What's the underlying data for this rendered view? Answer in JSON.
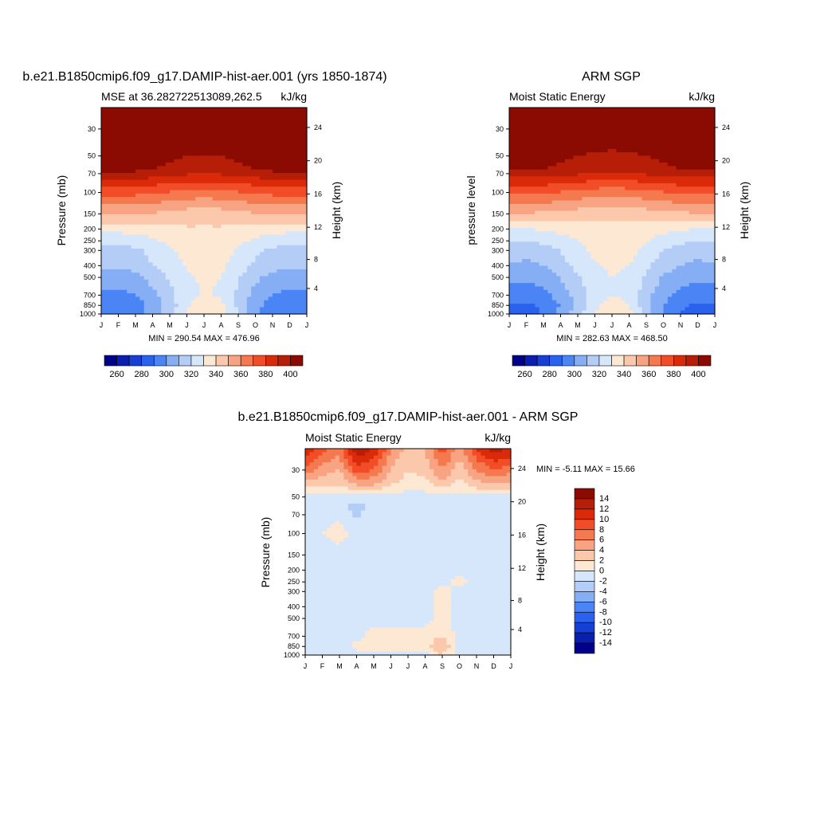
{
  "panels": [
    {
      "title": "b.e21.B1850cmip6.f09_g17.DAMIP-hist-aer.001 (yrs 1850-1874)",
      "subtitle_left": "MSE at 36.282722513089,262.5",
      "units": "kJ/kg",
      "left_axis_label": "Pressure (mb)",
      "right_axis_label": "Height (km)",
      "stats": "MIN = 290.54  MAX = 476.96"
    },
    {
      "title": "ARM SGP",
      "subtitle_left": "Moist Static Energy",
      "units": "kJ/kg",
      "left_axis_label": "pressure level",
      "right_axis_label": "Height (km)",
      "stats": "MIN = 282.63  MAX = 468.50"
    },
    {
      "title": "b.e21.B1850cmip6.f09_g17.DAMIP-hist-aer.001 - ARM SGP",
      "subtitle_left": "Moist Static Energy",
      "units": "kJ/kg",
      "left_axis_label": "Pressure (mb)",
      "right_axis_label": "Height (km)",
      "stats": "MIN =  -5.11  MAX =  15.66"
    }
  ],
  "abs_colorbar": {
    "colors": [
      "#00008a",
      "#0a1fb0",
      "#1640d4",
      "#2a62f0",
      "#4b85f5",
      "#86aef5",
      "#b4cdf7",
      "#d6e6fb",
      "#fde8d4",
      "#fbc8ac",
      "#f8a482",
      "#f5794f",
      "#f24d27",
      "#db2a0a",
      "#b61e08",
      "#8b0a02"
    ],
    "labels": [
      "260",
      "280",
      "300",
      "320",
      "340",
      "360",
      "380",
      "400"
    ]
  },
  "diff_colorbar": {
    "colors": [
      "#00008a",
      "#0a1fb0",
      "#1640d4",
      "#2a62f0",
      "#4b85f5",
      "#86aef5",
      "#b4cdf7",
      "#d6e6fb",
      "#fde8d4",
      "#fbc8ac",
      "#f8a482",
      "#f5794f",
      "#f24d27",
      "#db2a0a",
      "#b61e08",
      "#8b0a02"
    ],
    "labels": [
      "-14",
      "-12",
      "-10",
      "-8",
      "-6",
      "-4",
      "-2",
      "0",
      "2",
      "4",
      "6",
      "8",
      "10",
      "12",
      "14"
    ]
  },
  "chart_data": [
    {
      "type": "heatmap",
      "title": "b.e21.B1850cmip6.f09_g17.DAMIP-hist-aer.001 (yrs 1850-1874)",
      "subtitle": "MSE at 36.282722513089,262.5",
      "units": "kJ/kg",
      "xlabel": "",
      "ylabel": "Pressure (mb)",
      "y2label": "Height (km)",
      "x_tick_labels": [
        "J",
        "F",
        "M",
        "A",
        "M",
        "J",
        "J",
        "A",
        "S",
        "O",
        "N",
        "D",
        "J"
      ],
      "y_ticks": [
        30,
        50,
        70,
        100,
        150,
        200,
        250,
        300,
        400,
        500,
        700,
        850,
        1000
      ],
      "y2_ticks": [
        4,
        8,
        12,
        16,
        20,
        24
      ],
      "y_scale": "log",
      "ylim": [
        1000,
        20
      ],
      "min": 290.54,
      "max": 476.96,
      "levels": [
        {
          "p": 20,
          "values": [
            415,
            415,
            415,
            415,
            415,
            415,
            415,
            415,
            415,
            415,
            415,
            415,
            415
          ]
        },
        {
          "p": 65,
          "values": [
            402,
            402,
            402,
            400,
            398,
            396,
            395,
            396,
            398,
            400,
            402,
            402,
            402
          ]
        },
        {
          "p": 100,
          "values": [
            374,
            374,
            373,
            371,
            369,
            367,
            366,
            367,
            369,
            371,
            373,
            374,
            374
          ]
        },
        {
          "p": 150,
          "values": [
            351,
            351,
            350,
            349,
            347,
            345,
            344,
            345,
            347,
            349,
            350,
            351,
            351
          ]
        },
        {
          "p": 200,
          "values": [
            333,
            333,
            334,
            335,
            337,
            339,
            339,
            339,
            337,
            335,
            334,
            333,
            333
          ]
        },
        {
          "p": 300,
          "values": [
            317,
            316,
            318,
            323,
            328,
            335,
            337,
            336,
            329,
            322,
            318,
            316,
            317
          ]
        },
        {
          "p": 400,
          "values": [
            312,
            311,
            313,
            320,
            325,
            331,
            334,
            332,
            325,
            318,
            313,
            311,
            312
          ]
        },
        {
          "p": 500,
          "values": [
            306,
            305,
            307,
            314,
            321,
            329,
            331,
            330,
            321,
            312,
            307,
            305,
            306
          ]
        },
        {
          "p": 700,
          "values": [
            298,
            297,
            300,
            307,
            317,
            327,
            331,
            329,
            318,
            306,
            300,
            297,
            298
          ]
        },
        {
          "p": 850,
          "values": [
            292,
            291,
            295,
            304,
            315,
            328,
            336,
            333,
            318,
            303,
            295,
            291,
            292
          ]
        },
        {
          "p": 1000,
          "values": [
            291,
            290,
            295,
            305,
            318,
            332,
            340,
            336,
            319,
            303,
            294,
            290,
            291
          ]
        }
      ]
    },
    {
      "type": "heatmap",
      "title": "ARM SGP",
      "subtitle": "Moist Static Energy",
      "units": "kJ/kg",
      "xlabel": "",
      "ylabel": "pressure level",
      "y2label": "Height (km)",
      "x_tick_labels": [
        "J",
        "F",
        "M",
        "A",
        "M",
        "J",
        "J",
        "A",
        "S",
        "O",
        "N",
        "D",
        "J"
      ],
      "y_ticks": [
        30,
        50,
        70,
        100,
        150,
        200,
        250,
        300,
        400,
        500,
        700,
        850,
        1000
      ],
      "y2_ticks": [
        4,
        8,
        12,
        16,
        20,
        24
      ],
      "y_scale": "log",
      "ylim": [
        1000,
        20
      ],
      "min": 282.63,
      "max": 468.5,
      "levels": [
        {
          "p": 20,
          "values": [
            415,
            415,
            415,
            415,
            415,
            415,
            415,
            415,
            415,
            415,
            415,
            415,
            415
          ]
        },
        {
          "p": 65,
          "values": [
            400,
            400,
            400,
            398,
            396,
            394,
            393,
            394,
            396,
            398,
            400,
            400,
            400
          ]
        },
        {
          "p": 100,
          "values": [
            372,
            372,
            371,
            369,
            367,
            365,
            364,
            365,
            367,
            369,
            371,
            372,
            372
          ]
        },
        {
          "p": 150,
          "values": [
            349,
            349,
            348,
            347,
            345,
            343,
            342,
            343,
            345,
            347,
            348,
            349,
            349
          ]
        },
        {
          "p": 200,
          "values": [
            330,
            330,
            331,
            333,
            335,
            337,
            338,
            337,
            335,
            333,
            331,
            330,
            330
          ]
        },
        {
          "p": 300,
          "values": [
            314,
            313,
            315,
            320,
            326,
            333,
            336,
            334,
            327,
            320,
            315,
            313,
            314
          ]
        },
        {
          "p": 400,
          "values": [
            309,
            308,
            310,
            317,
            323,
            329,
            332,
            330,
            322,
            315,
            310,
            308,
            309
          ]
        },
        {
          "p": 500,
          "values": [
            303,
            302,
            304,
            311,
            319,
            327,
            330,
            328,
            318,
            309,
            304,
            302,
            303
          ]
        },
        {
          "p": 700,
          "values": [
            295,
            294,
            297,
            304,
            314,
            325,
            330,
            327,
            314,
            303,
            297,
            294,
            295
          ]
        },
        {
          "p": 850,
          "values": [
            289,
            288,
            292,
            301,
            313,
            327,
            336,
            330,
            314,
            300,
            292,
            288,
            289
          ]
        },
        {
          "p": 1000,
          "values": [
            287,
            286,
            291,
            302,
            316,
            331,
            340,
            333,
            315,
            299,
            290,
            286,
            287
          ]
        }
      ]
    },
    {
      "type": "heatmap",
      "title": "b.e21.B1850cmip6.f09_g17.DAMIP-hist-aer.001 - ARM SGP",
      "subtitle": "Moist Static Energy",
      "units": "kJ/kg",
      "xlabel": "",
      "ylabel": "Pressure (mb)",
      "y2label": "Height (km)",
      "x_tick_labels": [
        "J",
        "F",
        "M",
        "A",
        "M",
        "J",
        "J",
        "A",
        "S",
        "O",
        "N",
        "D",
        "J"
      ],
      "y_ticks": [
        30,
        50,
        70,
        100,
        150,
        200,
        250,
        300,
        400,
        500,
        700,
        850,
        1000
      ],
      "y2_ticks": [
        4,
        8,
        12,
        16,
        20,
        24
      ],
      "y_scale": "log",
      "ylim": [
        1000,
        20
      ],
      "min": -5.11,
      "max": 15.66,
      "levels": [
        {
          "p": 20,
          "values": [
            12,
            9,
            7,
            14,
            12,
            6,
            3,
            4,
            9,
            5,
            10,
            13,
            12
          ]
        },
        {
          "p": 30,
          "values": [
            7,
            5,
            4,
            9,
            8,
            4,
            2,
            3,
            6,
            3,
            6,
            8,
            7
          ]
        },
        {
          "p": 40,
          "values": [
            3,
            2,
            2,
            4,
            4,
            2,
            1,
            1,
            3,
            1,
            3,
            4,
            3
          ]
        },
        {
          "p": 50,
          "values": [
            -1,
            -1,
            -1,
            -1,
            -1,
            -1,
            -1,
            -1,
            -1,
            -1,
            -1,
            -1,
            -1
          ]
        },
        {
          "p": 60,
          "values": [
            -1,
            -1,
            -1,
            -3,
            -1,
            -1,
            -1,
            -1,
            -1,
            0,
            -1,
            -1,
            -1
          ]
        },
        {
          "p": 100,
          "values": [
            -1,
            0,
            1,
            -1,
            -1,
            -1,
            -1,
            -1,
            -1,
            -1,
            -1,
            -1,
            -1
          ]
        },
        {
          "p": 150,
          "values": [
            -2,
            -1,
            -1,
            -2,
            -1,
            -1,
            -1,
            -2,
            -1,
            -1,
            -2,
            -1,
            -2
          ]
        },
        {
          "p": 200,
          "values": [
            -1,
            -1,
            -2,
            -1,
            -1,
            -1,
            -1,
            -1,
            -1,
            -1,
            -1,
            -1,
            -1
          ]
        },
        {
          "p": 250,
          "values": [
            -2,
            -1,
            -2,
            -1,
            -1,
            -1,
            -1,
            -1,
            -1,
            1,
            -1,
            -1,
            -1
          ]
        },
        {
          "p": 300,
          "values": [
            -2,
            -1,
            -2,
            -1,
            -1,
            -1,
            -1,
            -1,
            1,
            -1,
            -1,
            -1,
            -1
          ]
        },
        {
          "p": 400,
          "values": [
            -1,
            -1,
            -2,
            -1,
            -1,
            -1,
            -1,
            -1,
            1,
            -1,
            -1,
            -1,
            -1
          ]
        },
        {
          "p": 500,
          "values": [
            -1,
            -1,
            -2,
            -1,
            -1,
            -1,
            -1,
            -1,
            1,
            -1,
            -1,
            -1,
            -1
          ]
        },
        {
          "p": 700,
          "values": [
            -1,
            -1,
            -2,
            -1,
            1,
            1,
            1,
            1,
            2,
            -1,
            -1,
            -1,
            -1
          ]
        },
        {
          "p": 850,
          "values": [
            -2,
            -1,
            -2,
            1,
            1,
            1,
            1,
            1,
            4,
            -1,
            -1,
            -1,
            -1
          ]
        },
        {
          "p": 1000,
          "values": [
            -1,
            -1,
            -1,
            -1,
            -1,
            -1,
            -1,
            -1,
            2,
            -1,
            -1,
            -1,
            -1
          ]
        }
      ]
    }
  ]
}
